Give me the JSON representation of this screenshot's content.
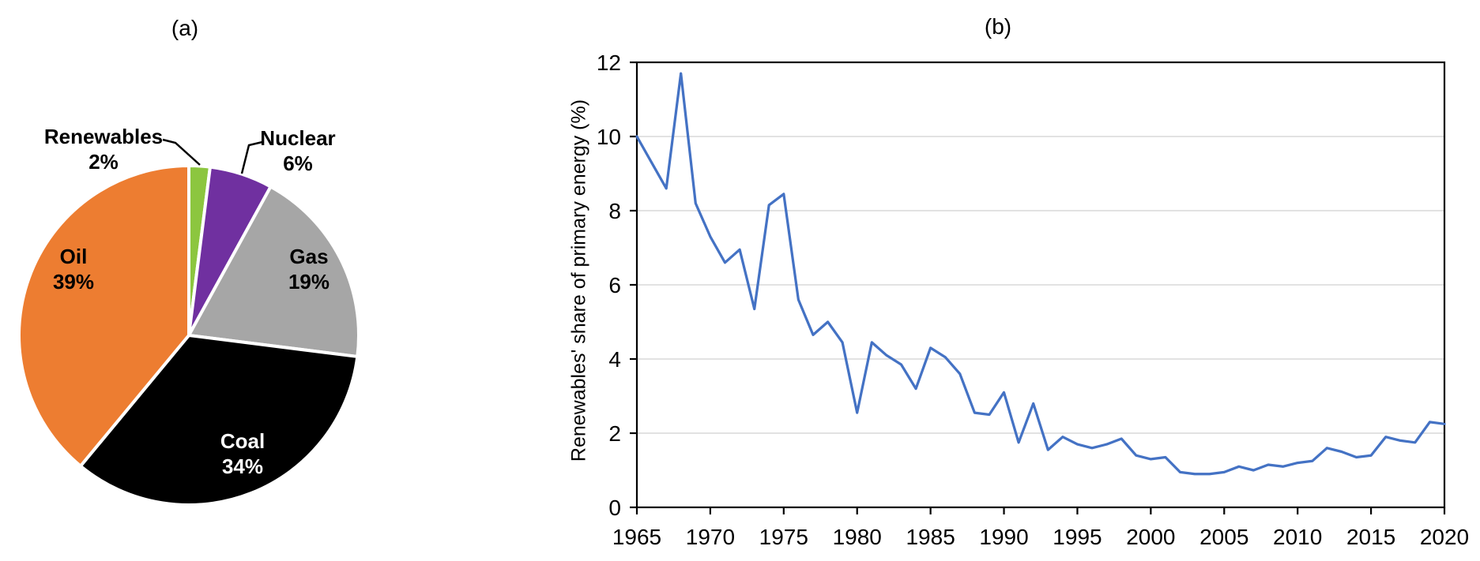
{
  "figure": {
    "panel_a_title": "(a)",
    "panel_b_title": "(b)"
  },
  "chart_data": [
    {
      "type": "pie",
      "panel": "(a)",
      "start_angle": "12-o-clock",
      "direction": "clockwise",
      "slice_border_color": "#FFFFFF",
      "slices_clockwise_from_top": [
        {
          "label": "Renewables",
          "pct": 2,
          "pct_label": "2%",
          "color": "#8CC63F",
          "text_color": "#000000",
          "placement": "outside-left"
        },
        {
          "label": "Nuclear",
          "pct": 6,
          "pct_label": "6%",
          "color": "#7030A0",
          "text_color": "#000000",
          "placement": "outside-right"
        },
        {
          "label": "Gas",
          "pct": 19,
          "pct_label": "19%",
          "color": "#A6A6A6",
          "text_color": "#000000",
          "placement": "inside"
        },
        {
          "label": "Coal",
          "pct": 34,
          "pct_label": "34%",
          "color": "#000000",
          "text_color": "#FFFFFF",
          "placement": "inside"
        },
        {
          "label": "Oil",
          "pct": 39,
          "pct_label": "39%",
          "color": "#ED7D31",
          "text_color": "#000000",
          "placement": "inside"
        }
      ]
    },
    {
      "type": "line",
      "panel": "(b)",
      "ylabel": "Renewables' share of primary energy (%)",
      "line_color": "#4472C4",
      "grid_color": "#D9D9D9",
      "axis_color": "#000000",
      "xlim": [
        1965,
        2020
      ],
      "ylim": [
        0,
        12
      ],
      "xticks": [
        1965,
        1970,
        1975,
        1980,
        1985,
        1990,
        1995,
        2000,
        2005,
        2010,
        2015,
        2020
      ],
      "yticks": [
        0,
        2,
        4,
        6,
        8,
        10,
        12
      ],
      "grid": true,
      "x": [
        1965,
        1966,
        1967,
        1968,
        1969,
        1970,
        1971,
        1972,
        1973,
        1974,
        1975,
        1976,
        1977,
        1978,
        1979,
        1980,
        1981,
        1982,
        1983,
        1984,
        1985,
        1986,
        1987,
        1988,
        1989,
        1990,
        1991,
        1992,
        1993,
        1994,
        1995,
        1996,
        1997,
        1998,
        1999,
        2000,
        2001,
        2002,
        2003,
        2004,
        2005,
        2006,
        2007,
        2008,
        2009,
        2010,
        2011,
        2012,
        2013,
        2014,
        2015,
        2016,
        2017,
        2018,
        2019,
        2020
      ],
      "y": [
        10.0,
        9.3,
        8.6,
        11.7,
        8.2,
        7.3,
        6.6,
        6.95,
        5.35,
        8.15,
        8.45,
        5.6,
        4.65,
        5.0,
        4.45,
        2.55,
        4.45,
        4.1,
        3.85,
        3.2,
        4.3,
        4.05,
        3.6,
        2.55,
        2.5,
        3.1,
        1.75,
        2.8,
        1.55,
        1.9,
        1.7,
        1.6,
        1.7,
        1.85,
        1.4,
        1.3,
        1.35,
        0.95,
        0.9,
        0.9,
        0.95,
        1.1,
        1.0,
        1.15,
        1.1,
        1.2,
        1.25,
        1.6,
        1.5,
        1.35,
        1.4,
        1.9,
        1.8,
        1.75,
        2.3,
        2.25
      ]
    }
  ]
}
